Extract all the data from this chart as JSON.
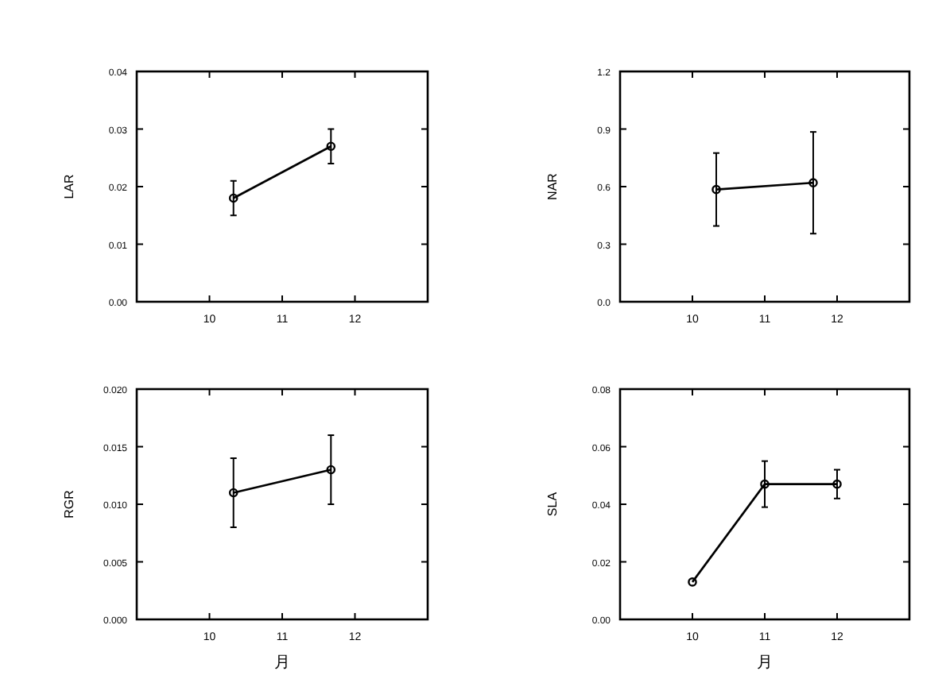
{
  "chart_data": [
    {
      "type": "line",
      "ylabel": "LAR",
      "x": [
        10.33,
        11.67
      ],
      "xlim": [
        9,
        13
      ],
      "xticks": [
        10,
        11,
        12
      ],
      "ylim": [
        0,
        0.04
      ],
      "yticks": [
        {
          "value": 0,
          "label": "0.00"
        },
        0.01,
        0.02,
        0.03,
        0.04
      ],
      "marker": "circle",
      "series": [
        {
          "color": "#000000",
          "values": [
            0.018,
            0.027
          ],
          "errors": [
            0.003,
            0.003
          ]
        }
      ]
    },
    {
      "type": "line",
      "ylabel": "NAR",
      "x": [
        10.33,
        11.67
      ],
      "xlim": [
        9,
        13
      ],
      "xticks": [
        10,
        11,
        12
      ],
      "ylim": [
        0,
        1.2
      ],
      "yticks": [
        {
          "value": 0,
          "label": "0.0"
        },
        0.3,
        0.6,
        0.9,
        1.2
      ],
      "marker": "circle",
      "series": [
        {
          "color": "#000000",
          "values": [
            0.585,
            0.62
          ],
          "errors": [
            0.19,
            0.265
          ]
        }
      ]
    },
    {
      "type": "line",
      "ylabel": "RGR",
      "xlabel": "月",
      "x": [
        10.33,
        11.67
      ],
      "xlim": [
        9,
        13
      ],
      "xticks": [
        10,
        11,
        12
      ],
      "ylim": [
        0,
        0.02
      ],
      "yticks": [
        {
          "value": 0,
          "label": "0.000"
        },
        0.005,
        {
          "value": 0.01,
          "label": "0.010"
        },
        0.015,
        {
          "value": 0.02,
          "label": "0.020"
        }
      ],
      "marker": "circle",
      "series": [
        {
          "color": "#000000",
          "values": [
            0.011,
            0.013
          ],
          "errors": [
            0.003,
            0.003
          ]
        }
      ]
    },
    {
      "type": "line",
      "ylabel": "SLA",
      "xlabel": "月",
      "x": [
        10,
        11,
        12
      ],
      "xlim": [
        9,
        13
      ],
      "xticks": [
        10,
        11,
        12
      ],
      "ylim": [
        0,
        0.08
      ],
      "yticks": [
        {
          "value": 0,
          "label": "0.00"
        },
        0.02,
        0.04,
        0.06,
        0.08
      ],
      "marker": "circle",
      "series": [
        {
          "color": "#000000",
          "values": [
            0.013,
            0.047,
            0.047
          ],
          "errors": [
            null,
            0.008,
            0.005
          ]
        }
      ]
    }
  ]
}
